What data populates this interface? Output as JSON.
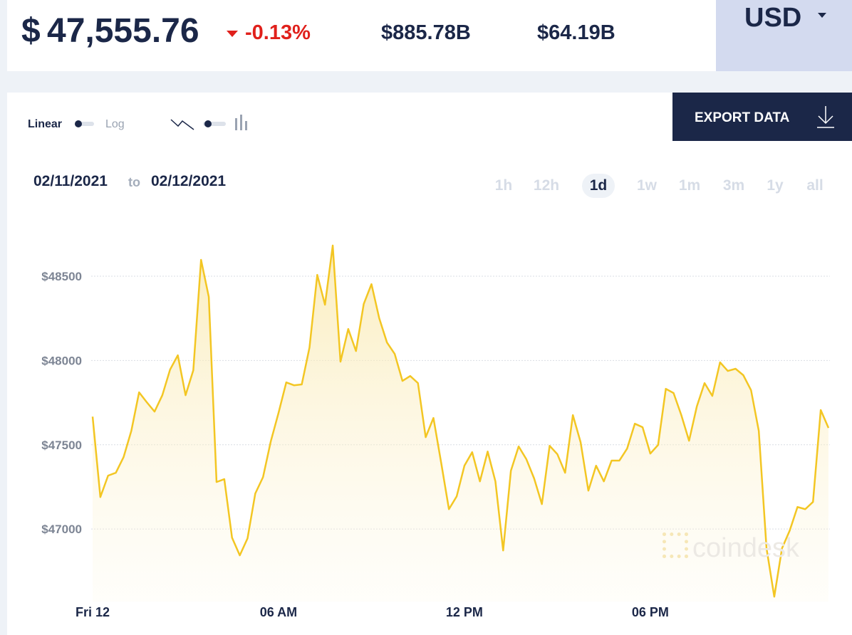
{
  "header": {
    "currency_symbol": "$",
    "price": "47,555.76",
    "change": "-0.13%",
    "market_cap": "$885.78B",
    "volume": "$64.19B",
    "currency": "USD"
  },
  "controls": {
    "linear": "Linear",
    "log": "Log",
    "export": "EXPORT DATA",
    "date_from": "02/11/2021",
    "date_sep": "to",
    "date_to": "02/12/2021",
    "ranges": [
      "1h",
      "12h",
      "1d",
      "1w",
      "1m",
      "3m",
      "1y",
      "all"
    ],
    "active_range": "1d"
  },
  "watermark": "coindesk",
  "chart_data": {
    "type": "line",
    "color": "#f3c623",
    "grid": true,
    "area": true,
    "x": [
      0,
      0.25,
      0.5,
      0.75,
      1,
      1.25,
      1.5,
      1.75,
      2,
      2.25,
      2.5,
      2.75,
      3,
      3.25,
      3.5,
      3.75,
      4,
      4.25,
      4.5,
      4.75,
      5,
      5.25,
      5.5,
      5.75,
      6,
      6.25,
      6.5,
      6.75,
      7,
      7.25,
      7.5,
      7.75,
      8,
      8.25,
      8.5,
      8.75,
      9,
      9.25,
      9.5,
      9.75,
      10,
      10.25,
      10.5,
      10.75,
      11,
      11.25,
      11.5,
      11.75,
      12,
      12.25,
      12.5,
      12.75,
      13,
      13.25,
      13.5,
      13.75,
      14,
      14.25,
      14.5,
      14.75,
      15,
      15.25,
      15.5,
      15.75,
      16,
      16.25,
      16.5,
      16.75,
      17,
      17.25,
      17.5,
      17.75,
      18,
      18.25,
      18.5,
      18.75,
      19,
      19.25,
      19.5,
      19.75,
      20,
      20.25,
      20.5,
      20.75,
      21,
      21.25,
      21.5,
      21.75,
      22,
      22.25,
      22.5,
      22.75,
      23,
      23.25,
      23.5,
      23.75
    ],
    "values": [
      47667,
      47190,
      47317,
      47334,
      47427,
      47583,
      47811,
      47752,
      47697,
      47794,
      47946,
      48031,
      47794,
      47942,
      48597,
      48377,
      47279,
      47296,
      46949,
      46844,
      46945,
      47211,
      47308,
      47520,
      47689,
      47870,
      47853,
      47858,
      48077,
      48508,
      48331,
      48682,
      47993,
      48187,
      48056,
      48335,
      48453,
      48251,
      48107,
      48039,
      47879,
      47908,
      47866,
      47545,
      47659,
      47393,
      47118,
      47194,
      47376,
      47456,
      47283,
      47460,
      47283,
      46873,
      47346,
      47490,
      47414,
      47300,
      47148,
      47494,
      47444,
      47334,
      47676,
      47515,
      47228,
      47376,
      47283,
      47406,
      47406,
      47477,
      47625,
      47604,
      47448,
      47499,
      47832,
      47807,
      47676,
      47524,
      47727,
      47866,
      47790,
      47989,
      47938,
      47951,
      47913,
      47824,
      47583,
      46886,
      46599,
      46886,
      46992,
      47131,
      47118,
      47161,
      47706,
      47600
    ],
    "xlim": [
      0,
      23.75
    ],
    "xticks": [
      {
        "value": 0,
        "label": "Fri 12"
      },
      {
        "value": 6,
        "label": "06 AM"
      },
      {
        "value": 12,
        "label": "12 PM"
      },
      {
        "value": 18,
        "label": "06 PM"
      }
    ],
    "ylim": [
      46570,
      48745
    ],
    "yticks": [
      {
        "value": 47000,
        "label": "$47000"
      },
      {
        "value": 47500,
        "label": "$47500"
      },
      {
        "value": 48000,
        "label": "$48000"
      },
      {
        "value": 48500,
        "label": "$48500"
      }
    ]
  }
}
